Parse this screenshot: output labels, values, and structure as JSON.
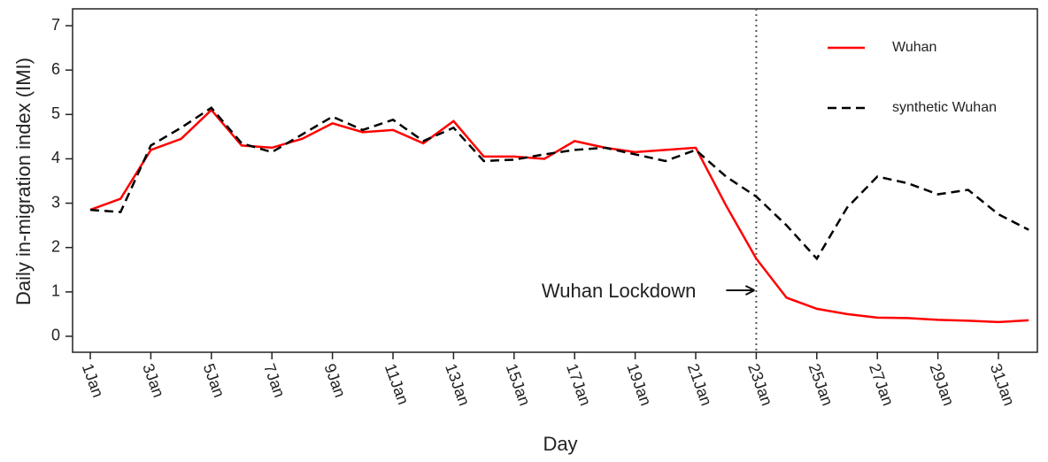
{
  "chart_data": {
    "type": "line",
    "x_label": "Day",
    "y_label": "Daily in-migration index (IMI)",
    "categories": [
      "1Jan",
      null,
      "3Jan",
      null,
      "5Jan",
      null,
      "7Jan",
      null,
      "9Jan",
      null,
      "11Jan",
      null,
      "13Jan",
      null,
      "15Jan",
      null,
      "17Jan",
      null,
      "19Jan",
      null,
      "21Jan",
      null,
      "23Jan",
      null,
      "25Jan",
      null,
      "27Jan",
      null,
      "29Jan",
      null,
      "31Jan",
      null
    ],
    "series": [
      {
        "name": "Wuhan",
        "color": "#ff0000",
        "dash": "solid",
        "values": [
          2.85,
          3.1,
          4.2,
          4.45,
          5.1,
          4.3,
          4.25,
          4.45,
          4.8,
          4.6,
          4.65,
          4.35,
          4.85,
          4.05,
          4.05,
          4.0,
          4.4,
          4.25,
          4.15,
          4.2,
          4.25,
          2.95,
          1.75,
          0.87,
          0.62,
          0.5,
          0.42,
          0.41,
          0.37,
          0.35,
          0.32,
          0.36
        ]
      },
      {
        "name": "synthetic Wuhan",
        "color": "#000000",
        "dash": "dashed",
        "values": [
          2.85,
          2.8,
          4.3,
          4.7,
          5.15,
          4.35,
          4.15,
          4.55,
          4.95,
          4.65,
          4.88,
          4.4,
          4.7,
          3.95,
          3.98,
          4.1,
          4.2,
          4.25,
          4.1,
          3.95,
          4.2,
          3.6,
          3.15,
          2.5,
          1.75,
          2.9,
          3.6,
          3.45,
          3.2,
          3.3,
          2.75,
          2.4
        ]
      }
    ],
    "ylim": [
      -0.36,
      7.38
    ],
    "yticks": [
      0,
      1,
      2,
      3,
      4,
      5,
      6,
      7
    ],
    "grid": false,
    "legend": "top right",
    "annotation": {
      "text": "Wuhan Lockdown",
      "x": "23Jan"
    }
  }
}
